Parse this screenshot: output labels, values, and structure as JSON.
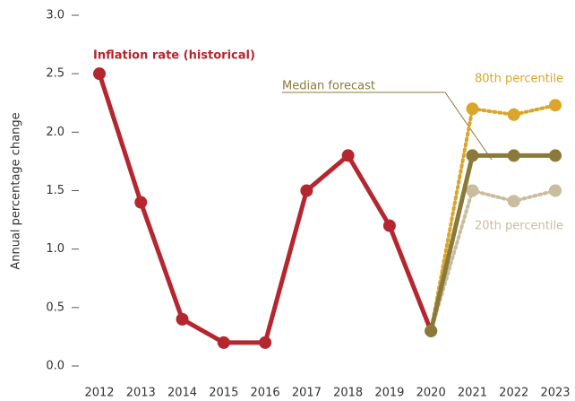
{
  "chart_data": {
    "type": "line",
    "y_label": "Annual percentage change",
    "categories": [
      "2012",
      "2013",
      "2014",
      "2015",
      "2016",
      "2017",
      "2018",
      "2019",
      "2020",
      "2021",
      "2022",
      "2023"
    ],
    "ylim": [
      0,
      3
    ],
    "yticks": [
      {
        "value": 0,
        "label": "0.0"
      },
      0.5,
      {
        "value": 1,
        "label": "1.0"
      },
      1.5,
      {
        "value": 2,
        "label": "2.0"
      },
      2.5,
      {
        "value": 3,
        "label": "3.0"
      }
    ],
    "series": [
      {
        "name": "Inflation rate (historical)",
        "color": "#b5262e",
        "line_style": "solid",
        "values": [
          2.5,
          1.4,
          0.4,
          0.2,
          0.2,
          1.5,
          1.8,
          1.2,
          0.3,
          null,
          null,
          null
        ]
      },
      {
        "name": "80th percentile",
        "color": "#d9a52b",
        "line_style": "dotted",
        "values": [
          null,
          null,
          null,
          null,
          null,
          null,
          null,
          null,
          0.3,
          2.2,
          2.15,
          2.23
        ]
      },
      {
        "name": "20th percentile",
        "color": "#c9bc9f",
        "line_style": "dotted",
        "values": [
          null,
          null,
          null,
          null,
          null,
          null,
          null,
          null,
          0.3,
          1.5,
          1.41,
          1.5
        ]
      },
      {
        "name": "Median forecast",
        "color": "#8a7a3a",
        "line_style": "solid",
        "values": [
          null,
          null,
          null,
          null,
          null,
          null,
          null,
          null,
          0.3,
          1.8,
          1.8,
          1.8
        ]
      }
    ]
  }
}
